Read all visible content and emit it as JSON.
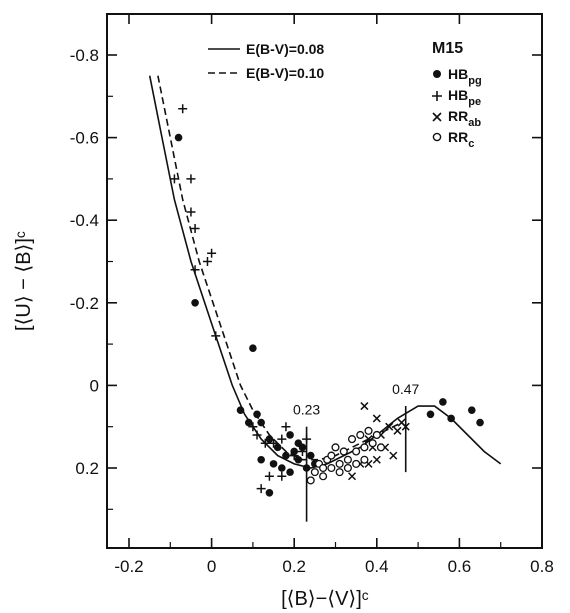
{
  "chart_data": {
    "type": "scatter",
    "xlabel": "[⟨B⟩−⟨V⟩]ᶜ",
    "ylabel": "[⟨U⟩ − ⟨B⟩]ᶜ",
    "xlim": [
      -0.25,
      0.8
    ],
    "ylim": [
      0.4,
      -0.9
    ],
    "y_inverted": true,
    "x_ticks": [
      -0.2,
      0,
      0.2,
      0.4,
      0.6,
      0.8
    ],
    "x_tick_labels": [
      "-0.2",
      "0",
      "0.2",
      "0.4",
      "0.6",
      "0.8"
    ],
    "y_ticks": [
      -0.8,
      -0.6,
      -0.4,
      -0.2,
      0,
      0.2
    ],
    "y_tick_labels": [
      "-0.8",
      "-0.6",
      "-0.4",
      "-0.2",
      "0",
      "0.2"
    ],
    "cluster_label": "M15",
    "line_legend": [
      {
        "label": "E(B-V)=0.08",
        "style": "solid"
      },
      {
        "label": "E(B-V)=0.10",
        "style": "dashed"
      }
    ],
    "marker_legend": [
      {
        "marker": "dot",
        "main": "HB",
        "sub": "pg"
      },
      {
        "marker": "plus",
        "main": "HB",
        "sub": "pe"
      },
      {
        "marker": "cross",
        "main": "RR",
        "sub": "ab"
      },
      {
        "marker": "circle",
        "main": "RR",
        "sub": "c"
      }
    ],
    "annotations": [
      {
        "text": "0.23",
        "x": 0.23,
        "y_top": 0.1,
        "y_bottom": 0.33
      },
      {
        "text": "0.47",
        "x": 0.47,
        "y_top": 0.05,
        "y_bottom": 0.21
      }
    ],
    "curves": [
      {
        "name": "E(B-V)=0.08",
        "style": "solid",
        "points": [
          [
            -0.15,
            -0.75
          ],
          [
            -0.12,
            -0.6
          ],
          [
            -0.09,
            -0.45
          ],
          [
            -0.05,
            -0.3
          ],
          [
            0,
            -0.15
          ],
          [
            0.05,
            0
          ],
          [
            0.08,
            0.07
          ],
          [
            0.12,
            0.13
          ],
          [
            0.16,
            0.17
          ],
          [
            0.2,
            0.19
          ],
          [
            0.24,
            0.2
          ],
          [
            0.28,
            0.19
          ],
          [
            0.32,
            0.17
          ],
          [
            0.36,
            0.15
          ],
          [
            0.4,
            0.12
          ],
          [
            0.45,
            0.08
          ],
          [
            0.5,
            0.05
          ],
          [
            0.54,
            0.05
          ],
          [
            0.58,
            0.08
          ],
          [
            0.62,
            0.12
          ],
          [
            0.66,
            0.16
          ],
          [
            0.7,
            0.19
          ]
        ]
      },
      {
        "name": "E(B-V)=0.10",
        "style": "dashed",
        "points": [
          [
            -0.13,
            -0.75
          ],
          [
            -0.1,
            -0.6
          ],
          [
            -0.07,
            -0.45
          ],
          [
            -0.03,
            -0.3
          ],
          [
            0.02,
            -0.15
          ],
          [
            0.07,
            0
          ],
          [
            0.1,
            0.06
          ],
          [
            0.14,
            0.12
          ],
          [
            0.18,
            0.16
          ],
          [
            0.22,
            0.18
          ],
          [
            0.26,
            0.18
          ],
          [
            0.3,
            0.17
          ],
          [
            0.34,
            0.15
          ],
          [
            0.38,
            0.13
          ],
          [
            0.42,
            0.11
          ],
          [
            0.46,
            0.09
          ]
        ]
      }
    ],
    "series": [
      {
        "name": "HBpg",
        "marker": "dot",
        "points": [
          [
            -0.08,
            -0.6
          ],
          [
            -0.04,
            -0.2
          ],
          [
            0.07,
            0.06
          ],
          [
            0.09,
            0.09
          ],
          [
            0.1,
            -0.09
          ],
          [
            0.11,
            0.07
          ],
          [
            0.12,
            0.09
          ],
          [
            0.14,
            0.13
          ],
          [
            0.15,
            0.19
          ],
          [
            0.16,
            0.15
          ],
          [
            0.18,
            0.17
          ],
          [
            0.19,
            0.12
          ],
          [
            0.2,
            0.16
          ],
          [
            0.21,
            0.18
          ],
          [
            0.22,
            0.15
          ],
          [
            0.23,
            0.2
          ],
          [
            0.24,
            0.17
          ],
          [
            0.25,
            0.19
          ],
          [
            0.12,
            0.18
          ],
          [
            0.14,
            0.26
          ],
          [
            0.17,
            0.2
          ],
          [
            0.19,
            0.21
          ],
          [
            0.21,
            0.14
          ],
          [
            0.53,
            0.07
          ],
          [
            0.56,
            0.04
          ],
          [
            0.58,
            0.08
          ],
          [
            0.63,
            0.06
          ],
          [
            0.65,
            0.09
          ]
        ]
      },
      {
        "name": "HBpe",
        "marker": "plus",
        "points": [
          [
            -0.07,
            -0.67
          ],
          [
            -0.09,
            -0.5
          ],
          [
            -0.05,
            -0.5
          ],
          [
            -0.05,
            -0.42
          ],
          [
            -0.04,
            -0.38
          ],
          [
            -0.04,
            -0.28
          ],
          [
            -0.01,
            -0.3
          ],
          [
            0,
            -0.32
          ],
          [
            0.01,
            -0.12
          ],
          [
            0.1,
            0.1
          ],
          [
            0.11,
            0.12
          ],
          [
            0.13,
            0.14
          ],
          [
            0.15,
            0.14
          ],
          [
            0.17,
            0.13
          ],
          [
            0.18,
            0.1
          ],
          [
            0.2,
            0.17
          ],
          [
            0.22,
            0.16
          ],
          [
            0.23,
            0.13
          ],
          [
            0.12,
            0.25
          ],
          [
            0.14,
            0.22
          ],
          [
            0.17,
            0.22
          ]
        ]
      },
      {
        "name": "RRab",
        "marker": "cross",
        "points": [
          [
            0.34,
            0.22
          ],
          [
            0.36,
            0.19
          ],
          [
            0.37,
            0.05
          ],
          [
            0.38,
            0.13
          ],
          [
            0.39,
            0.15
          ],
          [
            0.4,
            0.08
          ],
          [
            0.41,
            0.12
          ],
          [
            0.42,
            0.15
          ],
          [
            0.43,
            0.1
          ],
          [
            0.44,
            0.17
          ],
          [
            0.45,
            0.11
          ],
          [
            0.46,
            0.09
          ],
          [
            0.47,
            0.1
          ],
          [
            0.38,
            0.19
          ],
          [
            0.4,
            0.18
          ]
        ]
      },
      {
        "name": "RRc",
        "marker": "circle",
        "points": [
          [
            0.24,
            0.23
          ],
          [
            0.26,
            0.19
          ],
          [
            0.27,
            0.2
          ],
          [
            0.28,
            0.18
          ],
          [
            0.29,
            0.17
          ],
          [
            0.3,
            0.15
          ],
          [
            0.31,
            0.19
          ],
          [
            0.32,
            0.16
          ],
          [
            0.33,
            0.18
          ],
          [
            0.34,
            0.13
          ],
          [
            0.35,
            0.16
          ],
          [
            0.36,
            0.12
          ],
          [
            0.37,
            0.15
          ],
          [
            0.38,
            0.11
          ],
          [
            0.39,
            0.14
          ],
          [
            0.4,
            0.12
          ],
          [
            0.41,
            0.15
          ],
          [
            0.31,
            0.21
          ],
          [
            0.33,
            0.2
          ],
          [
            0.35,
            0.19
          ],
          [
            0.37,
            0.18
          ],
          [
            0.29,
            0.2
          ],
          [
            0.27,
            0.22
          ],
          [
            0.25,
            0.21
          ]
        ]
      }
    ]
  }
}
